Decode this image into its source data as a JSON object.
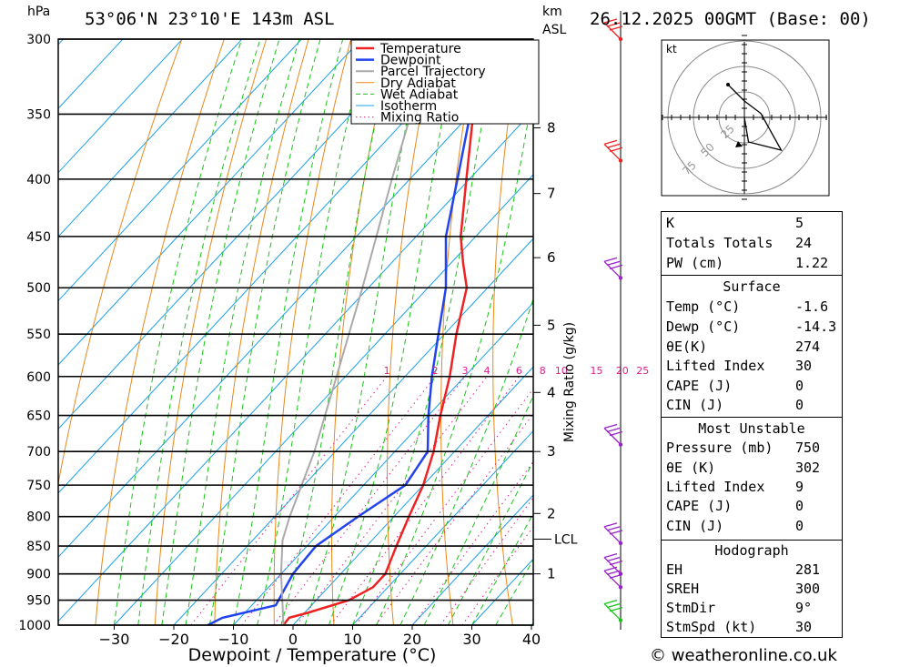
{
  "header": {
    "location": "53°06'N 23°10'E 143m ASL",
    "datetime": "26.12.2025 00GMT (Base: 00)",
    "pressure_unit": "hPa",
    "height_unit_1": "km",
    "height_unit_2": "ASL"
  },
  "chart_data": {
    "type": "skewt",
    "title": "53°06'N 23°10'E 143m ASL",
    "xlabel": "Dewpoint / Temperature (°C)",
    "ylabel": "hPa",
    "xlim": [
      -40,
      40
    ],
    "ylim": [
      1000,
      300
    ],
    "pressure_levels": [
      300,
      350,
      400,
      450,
      500,
      550,
      600,
      650,
      700,
      750,
      800,
      850,
      900,
      950,
      1000
    ],
    "temp_ticks": [
      -30,
      -20,
      -10,
      0,
      10,
      20,
      30,
      40
    ],
    "legend": [
      "Temperature",
      "Dewpoint",
      "Parcel Trajectory",
      "Dry Adiabat",
      "Wet Adiabat",
      "Isotherm",
      "Mixing Ratio"
    ],
    "legend_placement": "top-center",
    "series": [
      {
        "name": "Temperature",
        "color": "#ee2222",
        "points": [
          [
            1000,
            -1.6
          ],
          [
            985,
            -1.8
          ],
          [
            975,
            0.5
          ],
          [
            950,
            5.5
          ],
          [
            925,
            7.5
          ],
          [
            900,
            7.5
          ],
          [
            850,
            5.0
          ],
          [
            800,
            2.5
          ],
          [
            750,
            0.0
          ],
          [
            700,
            -3.5
          ],
          [
            650,
            -8.0
          ],
          [
            600,
            -12.5
          ],
          [
            550,
            -18.0
          ],
          [
            500,
            -23.5
          ],
          [
            475,
            -28.0
          ],
          [
            450,
            -32.5
          ],
          [
            400,
            -40.5
          ],
          [
            350,
            -49.5
          ],
          [
            300,
            -59.5
          ]
        ]
      },
      {
        "name": "Dewpoint",
        "color": "#2244ee",
        "points": [
          [
            1000,
            -14.3
          ],
          [
            985,
            -13.0
          ],
          [
            960,
            -6.0
          ],
          [
            930,
            -7.0
          ],
          [
            900,
            -8.0
          ],
          [
            850,
            -8.5
          ],
          [
            800,
            -6.0
          ],
          [
            750,
            -3.0
          ],
          [
            700,
            -4.5
          ],
          [
            650,
            -10.0
          ],
          [
            600,
            -15.5
          ],
          [
            550,
            -21.0
          ],
          [
            500,
            -27.0
          ],
          [
            450,
            -35.0
          ],
          [
            400,
            -42.0
          ],
          [
            350,
            -50.0
          ],
          [
            300,
            -61.0
          ]
        ]
      },
      {
        "name": "Parcel Trajectory",
        "color": "#aaaaaa",
        "points": [
          [
            1000,
            -1.6
          ],
          [
            900,
            -10.0
          ],
          [
            840,
            -15.0
          ],
          [
            800,
            -17.5
          ],
          [
            700,
            -23.5
          ],
          [
            600,
            -31.5
          ],
          [
            500,
            -41.0
          ],
          [
            400,
            -53.0
          ],
          [
            300,
            -68.0
          ]
        ]
      }
    ],
    "mixing_ratio_labels": [
      "1",
      "2",
      "3",
      "4",
      "6",
      "8",
      "10",
      "15",
      "20",
      "25"
    ],
    "mixing_ratio_axis_label": "Mixing Ratio (g/kg)",
    "height_ticks": [
      {
        "label": "8",
        "pressure": 360
      },
      {
        "label": "7",
        "pressure": 412
      },
      {
        "label": "6",
        "pressure": 470
      },
      {
        "label": "5",
        "pressure": 540
      },
      {
        "label": "4",
        "pressure": 620
      },
      {
        "label": "3",
        "pressure": 700
      },
      {
        "label": "2",
        "pressure": 795
      },
      {
        "label": "1",
        "pressure": 900
      }
    ],
    "lcl": {
      "label": "LCL",
      "pressure": 838
    },
    "hodograph": {
      "unit_label": "kt",
      "ring_labels": [
        "25",
        "50",
        "75"
      ],
      "points": [
        [
          0,
          0
        ],
        [
          0.1,
          -0.6
        ],
        [
          0.9,
          -0.8
        ],
        [
          0.4,
          0.1
        ],
        [
          0.0,
          0.4
        ],
        [
          -0.4,
          0.8
        ]
      ]
    }
  },
  "panel": {
    "indices": [
      {
        "key": "K",
        "value": "5"
      },
      {
        "key": "Totals Totals",
        "value": "24"
      },
      {
        "key": "PW (cm)",
        "value": "1.22"
      }
    ],
    "surface_title": "Surface",
    "surface": [
      {
        "key": "Temp (°C)",
        "value": "-1.6"
      },
      {
        "key": "Dewp (°C)",
        "value": "-14.3"
      },
      {
        "key": "θE(K)",
        "value": "274"
      },
      {
        "key": "Lifted Index",
        "value": "30"
      },
      {
        "key": "CAPE (J)",
        "value": "0"
      },
      {
        "key": "CIN (J)",
        "value": "0"
      }
    ],
    "mu_title": "Most Unstable",
    "most_unstable": [
      {
        "key": "Pressure (mb)",
        "value": "750"
      },
      {
        "key": "θE (K)",
        "value": "302"
      },
      {
        "key": "Lifted Index",
        "value": "9"
      },
      {
        "key": "CAPE (J)",
        "value": "0"
      },
      {
        "key": "CIN (J)",
        "value": "0"
      }
    ],
    "hodo_title": "Hodograph",
    "hodograph": [
      {
        "key": "EH",
        "value": "281"
      },
      {
        "key": "SREH",
        "value": "300"
      },
      {
        "key": "StmDir",
        "value": "9°"
      },
      {
        "key": "StmSpd (kt)",
        "value": "30"
      }
    ]
  },
  "copyright": "© weatheronline.co.uk"
}
